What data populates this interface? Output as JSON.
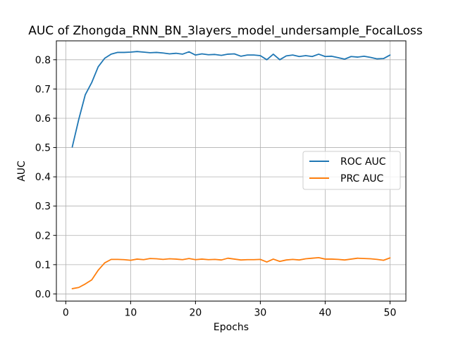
{
  "chart_data": {
    "type": "line",
    "title": "AUC of Zhongda_RNN_BN_3layers_model_undersample_FocalLoss",
    "xlabel": "Epochs",
    "ylabel": "AUC",
    "xlim": [
      -1.45,
      52.45
    ],
    "ylim": [
      -0.0245,
      0.8645
    ],
    "xticks": [
      0,
      10,
      20,
      30,
      40,
      50
    ],
    "yticks": [
      0.0,
      0.1,
      0.2,
      0.3,
      0.4,
      0.5,
      0.6,
      0.7,
      0.8
    ],
    "ytick_labels": [
      "0.0",
      "0.1",
      "0.2",
      "0.3",
      "0.4",
      "0.5",
      "0.6",
      "0.7",
      "0.8"
    ],
    "grid": true,
    "legend_position": "center-right",
    "x": [
      1,
      2,
      3,
      4,
      5,
      6,
      7,
      8,
      9,
      10,
      11,
      12,
      13,
      14,
      15,
      16,
      17,
      18,
      19,
      20,
      21,
      22,
      23,
      24,
      25,
      26,
      27,
      28,
      29,
      30,
      31,
      32,
      33,
      34,
      35,
      36,
      37,
      38,
      39,
      40,
      41,
      42,
      43,
      44,
      45,
      46,
      47,
      48,
      49,
      50
    ],
    "series": [
      {
        "name": "ROC AUC",
        "color": "#1f77b4",
        "values": [
          0.502,
          0.596,
          0.68,
          0.722,
          0.776,
          0.805,
          0.819,
          0.825,
          0.825,
          0.826,
          0.828,
          0.826,
          0.824,
          0.825,
          0.823,
          0.82,
          0.822,
          0.819,
          0.827,
          0.816,
          0.82,
          0.817,
          0.818,
          0.815,
          0.819,
          0.82,
          0.812,
          0.816,
          0.816,
          0.814,
          0.8,
          0.819,
          0.8,
          0.813,
          0.816,
          0.811,
          0.814,
          0.811,
          0.819,
          0.811,
          0.812,
          0.807,
          0.802,
          0.811,
          0.809,
          0.812,
          0.808,
          0.803,
          0.804,
          0.816
        ]
      },
      {
        "name": "PRC AUC",
        "color": "#ff7f0e",
        "values": [
          0.018,
          0.022,
          0.034,
          0.048,
          0.081,
          0.106,
          0.118,
          0.118,
          0.117,
          0.115,
          0.119,
          0.117,
          0.121,
          0.12,
          0.118,
          0.12,
          0.119,
          0.117,
          0.121,
          0.117,
          0.119,
          0.117,
          0.118,
          0.116,
          0.122,
          0.119,
          0.116,
          0.117,
          0.117,
          0.118,
          0.109,
          0.119,
          0.111,
          0.116,
          0.118,
          0.116,
          0.12,
          0.122,
          0.124,
          0.119,
          0.119,
          0.118,
          0.116,
          0.119,
          0.122,
          0.121,
          0.12,
          0.118,
          0.115,
          0.123
        ]
      }
    ]
  }
}
